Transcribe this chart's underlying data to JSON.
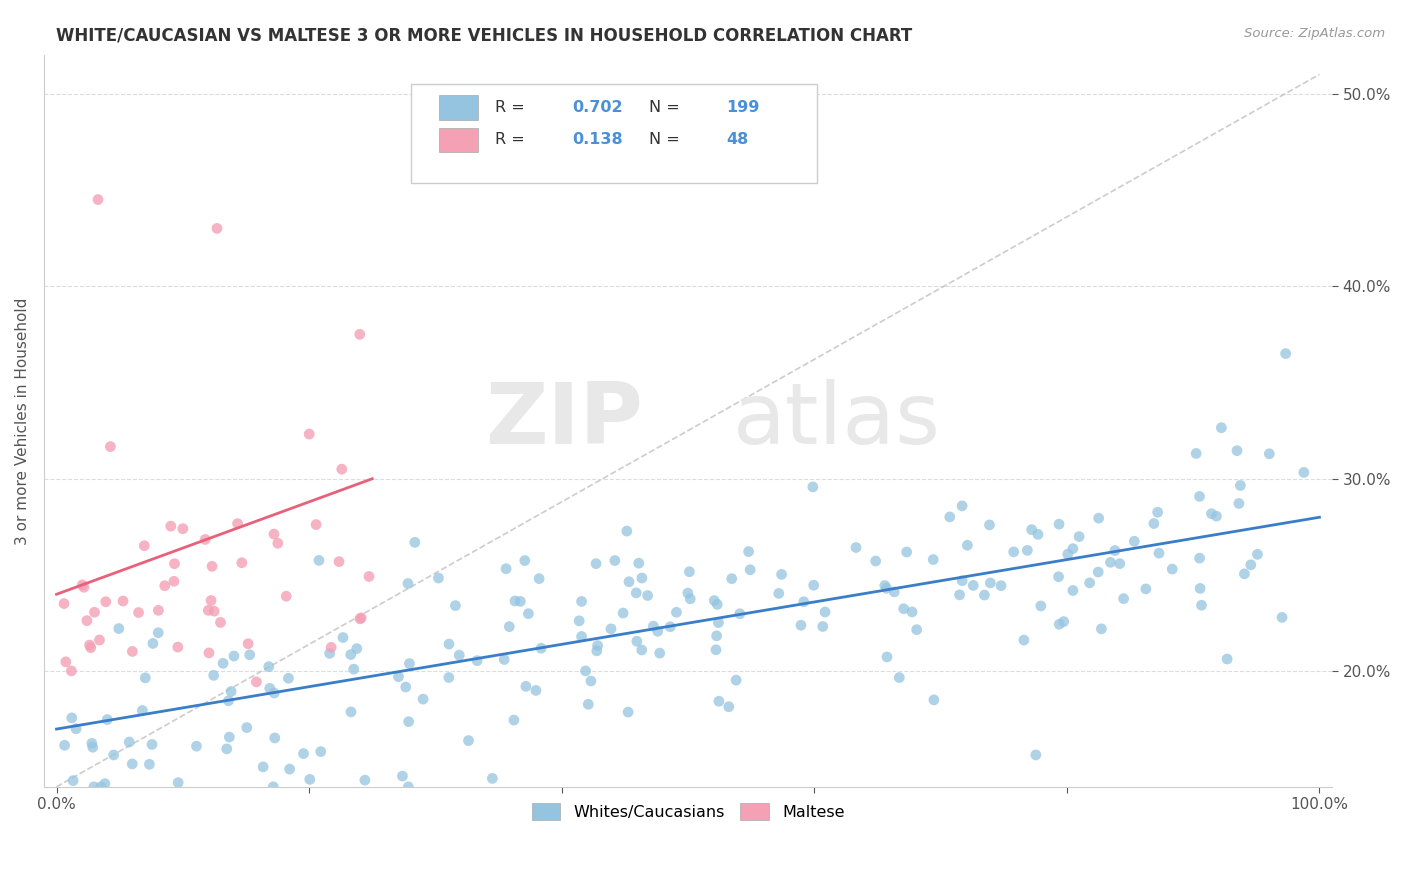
{
  "title": "WHITE/CAUCASIAN VS MALTESE 3 OR MORE VEHICLES IN HOUSEHOLD CORRELATION CHART",
  "source": "Source: ZipAtlas.com",
  "ylabel": "3 or more Vehicles in Household",
  "x_tick_labels": [
    "0.0%",
    "",
    "",
    "",
    "",
    "100.0%"
  ],
  "x_ticks": [
    0,
    20,
    40,
    60,
    80,
    100
  ],
  "y_ticks": [
    20,
    30,
    40,
    50
  ],
  "y_tick_labels": [
    "20.0%",
    "30.0%",
    "40.0%",
    "50.0%"
  ],
  "blue_color": "#94c4e0",
  "pink_color": "#f4a0b5",
  "blue_line_color": "#3a7dc9",
  "pink_line_color": "#e8607a",
  "R_blue": 0.702,
  "N_blue": 199,
  "R_pink": 0.138,
  "N_pink": 48,
  "legend_labels": [
    "Whites/Caucasians",
    "Maltese"
  ],
  "watermark_zip": "ZIP",
  "watermark_atlas": "atlas",
  "xlim": [
    -1,
    101
  ],
  "ylim": [
    14,
    52
  ]
}
